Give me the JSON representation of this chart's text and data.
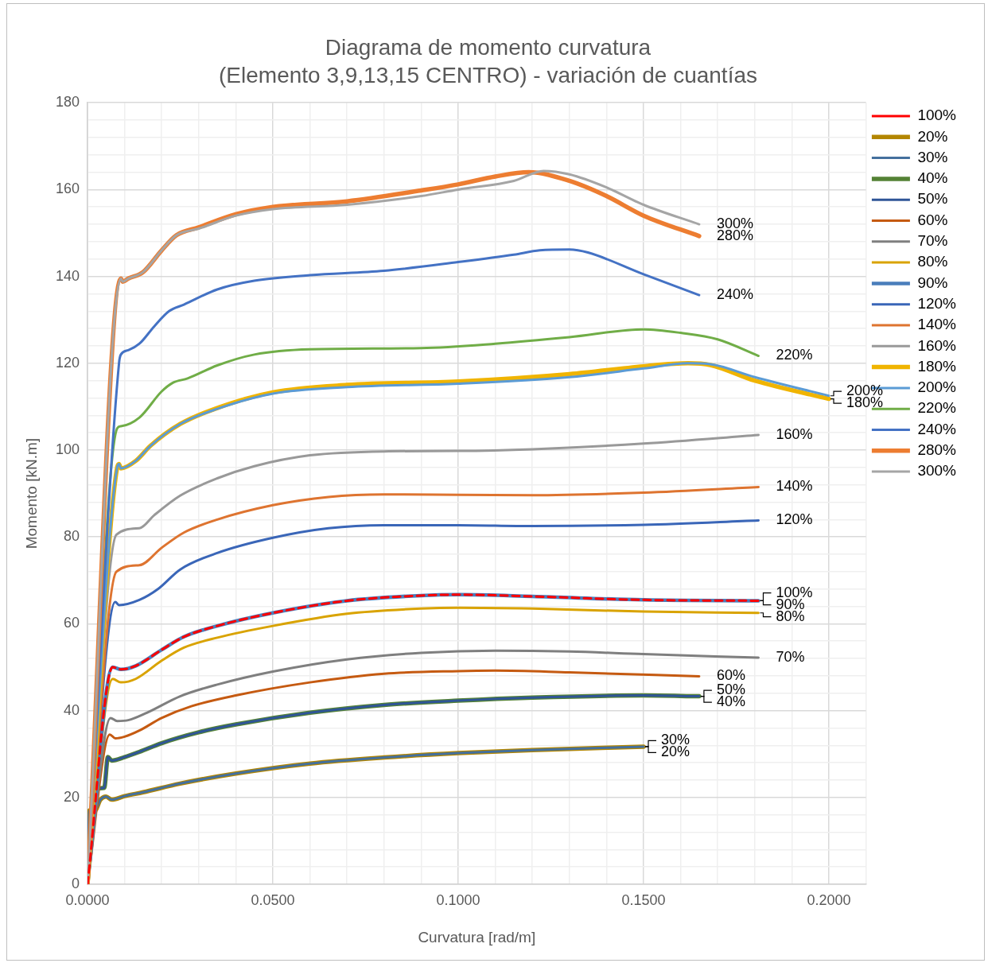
{
  "chart_data": {
    "type": "line",
    "title": "Diagrama de momento curvatura",
    "subtitle": "(Elemento 3,9,13,15 CENTRO) - variación de cuantías",
    "xlabel": "Curvatura [rad/m]",
    "ylabel": "Momento [kN.m]",
    "xlim": [
      0,
      0.21
    ],
    "xticks": [
      {
        "value": 0,
        "label": "0.0000"
      },
      {
        "value": 0.01,
        "label": null
      },
      {
        "value": 0.02,
        "label": null
      },
      {
        "value": 0.03,
        "label": null
      },
      {
        "value": 0.04,
        "label": null
      },
      {
        "value": 0.05,
        "label": "0.0500"
      },
      {
        "value": 0.06,
        "label": null
      },
      {
        "value": 0.07,
        "label": null
      },
      {
        "value": 0.08,
        "label": null
      },
      {
        "value": 0.09,
        "label": null
      },
      {
        "value": 0.1,
        "label": "0.1000"
      },
      {
        "value": 0.11,
        "label": null
      },
      {
        "value": 0.12,
        "label": null
      },
      {
        "value": 0.13,
        "label": null
      },
      {
        "value": 0.14,
        "label": null
      },
      {
        "value": 0.15,
        "label": "0.1500"
      },
      {
        "value": 0.16,
        "label": null
      },
      {
        "value": 0.17,
        "label": null
      },
      {
        "value": 0.18,
        "label": null
      },
      {
        "value": 0.19,
        "label": null
      },
      {
        "value": 0.2,
        "label": "0.2000"
      },
      {
        "value": 0.21,
        "label": null
      }
    ],
    "ylim": [
      0,
      180
    ],
    "yticks": [
      0,
      {
        "value": 4,
        "label": null
      },
      {
        "value": 8,
        "label": null
      },
      {
        "value": 12,
        "label": null
      },
      {
        "value": 16,
        "label": null
      },
      20,
      {
        "value": 24,
        "label": null
      },
      {
        "value": 28,
        "label": null
      },
      {
        "value": 32,
        "label": null
      },
      {
        "value": 36,
        "label": null
      },
      40,
      {
        "value": 44,
        "label": null
      },
      {
        "value": 48,
        "label": null
      },
      {
        "value": 52,
        "label": null
      },
      {
        "value": 56,
        "label": null
      },
      60,
      {
        "value": 64,
        "label": null
      },
      {
        "value": 68,
        "label": null
      },
      {
        "value": 72,
        "label": null
      },
      {
        "value": 76,
        "label": null
      },
      80,
      {
        "value": 84,
        "label": null
      },
      {
        "value": 88,
        "label": null
      },
      {
        "value": 92,
        "label": null
      },
      {
        "value": 96,
        "label": null
      },
      100,
      {
        "value": 104,
        "label": null
      },
      {
        "value": 108,
        "label": null
      },
      {
        "value": 112,
        "label": null
      },
      {
        "value": 116,
        "label": null
      },
      120,
      {
        "value": 124,
        "label": null
      },
      {
        "value": 128,
        "label": null
      },
      {
        "value": 132,
        "label": null
      },
      {
        "value": 136,
        "label": null
      },
      140,
      {
        "value": 144,
        "label": null
      },
      {
        "value": 148,
        "label": null
      },
      {
        "value": 152,
        "label": null
      },
      {
        "value": 156,
        "label": null
      },
      160,
      {
        "value": 164,
        "label": null
      },
      {
        "value": 168,
        "label": null
      },
      {
        "value": 172,
        "label": null
      },
      {
        "value": 176,
        "label": null
      },
      180
    ],
    "grid": true,
    "legend": "right",
    "marker": "none",
    "line_style": "solid",
    "series": [
      {
        "name": "100%",
        "color": "#ff0000",
        "line_style": "dashed",
        "x": [
          0,
          0.0068,
          0.009,
          0.013,
          0.02,
          0.026,
          0.035,
          0.05,
          0.07,
          0.09,
          0.1,
          0.12,
          0.15,
          0.181
        ],
        "values": [
          0,
          50,
          49.5,
          50.3,
          54,
          57,
          59.5,
          62.5,
          65.3,
          66.5,
          66.7,
          66.3,
          65.5,
          65.3
        ]
      },
      {
        "name": "20%",
        "color": "#b38600",
        "x": [
          0,
          0.0005,
          0.002,
          0.0035,
          0.005,
          0.0065,
          0.01,
          0.015,
          0.025,
          0.04,
          0.06,
          0.08,
          0.1,
          0.12,
          0.15
        ],
        "values": [
          0,
          17,
          17,
          19.5,
          20.2,
          19.5,
          20.3,
          21.2,
          23.2,
          25.5,
          27.8,
          29.2,
          30.2,
          30.9,
          31.7
        ]
      },
      {
        "name": "30%",
        "color": "#44709d",
        "x": [
          0,
          0.0005,
          0.002,
          0.0035,
          0.005,
          0.0065,
          0.01,
          0.015,
          0.025,
          0.04,
          0.06,
          0.08,
          0.1,
          0.12,
          0.15
        ],
        "values": [
          0,
          17,
          17,
          19.5,
          20.2,
          19.5,
          20.3,
          21.2,
          23.2,
          25.5,
          27.8,
          29.2,
          30.2,
          30.9,
          31.7
        ]
      },
      {
        "name": "40%",
        "color": "#548235",
        "x": [
          0,
          0.0018,
          0.0045,
          0.0055,
          0.0065,
          0.01,
          0.014,
          0.02,
          0.03,
          0.04,
          0.06,
          0.08,
          0.1,
          0.12,
          0.15,
          0.165
        ],
        "values": [
          0,
          22,
          22.2,
          29.3,
          28.5,
          29.3,
          30.5,
          32.5,
          35,
          36.8,
          39.5,
          41.3,
          42.3,
          43,
          43.5,
          43.3
        ]
      },
      {
        "name": "50%",
        "color": "#2f5597",
        "x": [
          0,
          0.0018,
          0.0045,
          0.0055,
          0.0065,
          0.01,
          0.014,
          0.02,
          0.03,
          0.04,
          0.06,
          0.08,
          0.1,
          0.12,
          0.15,
          0.165
        ],
        "values": [
          0,
          22,
          22.2,
          29.3,
          28.5,
          29.3,
          30.5,
          32.5,
          35,
          36.8,
          39.5,
          41.3,
          42.3,
          43,
          43.5,
          43.3
        ]
      },
      {
        "name": "60%",
        "color": "#c55a11",
        "x": [
          0,
          0.006,
          0.0075,
          0.01,
          0.014,
          0.02,
          0.028,
          0.04,
          0.06,
          0.08,
          0.1,
          0.11,
          0.13,
          0.165
        ],
        "values": [
          0,
          34.5,
          33.6,
          34,
          35.4,
          38.3,
          41,
          43.5,
          46.5,
          48.5,
          49.1,
          49.2,
          48.8,
          47.9
        ]
      },
      {
        "name": "70%",
        "color": "#7f7f7f",
        "x": [
          0,
          0.0062,
          0.008,
          0.011,
          0.016,
          0.025,
          0.035,
          0.05,
          0.07,
          0.09,
          0.11,
          0.13,
          0.15,
          0.181
        ],
        "values": [
          0,
          38.3,
          37.6,
          37.8,
          39.5,
          43.3,
          46,
          49,
          51.8,
          53.3,
          53.8,
          53.6,
          53,
          52.2
        ]
      },
      {
        "name": "80%",
        "color": "#d9a300",
        "x": [
          0,
          0.0068,
          0.009,
          0.013,
          0.02,
          0.026,
          0.035,
          0.05,
          0.07,
          0.09,
          0.1,
          0.12,
          0.15,
          0.181
        ],
        "values": [
          0,
          47.3,
          46.5,
          47.3,
          51.5,
          54.5,
          56.8,
          59.5,
          62.3,
          63.5,
          63.7,
          63.5,
          62.8,
          62.5
        ]
      },
      {
        "name": "90%",
        "color": "#4a7ebb",
        "x": [
          0,
          0.0068,
          0.009,
          0.013,
          0.02,
          0.026,
          0.035,
          0.05,
          0.07,
          0.09,
          0.1,
          0.12,
          0.15,
          0.181
        ],
        "values": [
          0,
          50,
          49.5,
          50.3,
          54,
          57,
          59.5,
          62.5,
          65.3,
          66.5,
          66.7,
          66.3,
          65.5,
          65.3
        ]
      },
      {
        "name": "120%",
        "color": "#3a66b8",
        "x": [
          0,
          0.0075,
          0.0085,
          0.014,
          0.019,
          0.025,
          0.035,
          0.05,
          0.065,
          0.08,
          0.1,
          0.12,
          0.15,
          0.181
        ],
        "values": [
          0,
          65,
          64.3,
          65.5,
          68,
          72.5,
          76.3,
          79.8,
          82,
          82.7,
          82.7,
          82.5,
          82.8,
          83.8
        ]
      },
      {
        "name": "140%",
        "color": "#de7430",
        "x": [
          0,
          0.0078,
          0.014,
          0.02,
          0.026,
          0.035,
          0.05,
          0.065,
          0.08,
          0.1,
          0.12,
          0.15,
          0.181
        ],
        "values": [
          0,
          72,
          73.5,
          77.5,
          81,
          84,
          87.3,
          89.2,
          89.8,
          89.7,
          89.6,
          90.2,
          91.5
        ]
      },
      {
        "name": "160%",
        "color": "#999999",
        "x": [
          0,
          0.0078,
          0.014,
          0.018,
          0.025,
          0.035,
          0.045,
          0.06,
          0.08,
          0.1,
          0.12,
          0.15,
          0.181
        ],
        "values": [
          0,
          80.5,
          82,
          85,
          89.5,
          93.5,
          96.3,
          98.8,
          99.7,
          99.8,
          100.2,
          101.5,
          103.5
        ]
      },
      {
        "name": "180%",
        "color": "#f0b400",
        "x": [
          0,
          0.008,
          0.0085,
          0.009,
          0.013,
          0.017,
          0.025,
          0.035,
          0.05,
          0.07,
          0.1,
          0.13,
          0.15,
          0.162,
          0.168,
          0.18,
          0.2
        ],
        "values": [
          0,
          96,
          96.8,
          95.8,
          97.5,
          101,
          106,
          109.7,
          113.3,
          115,
          115.8,
          117.5,
          119.3,
          120,
          119.6,
          116,
          111.8
        ]
      },
      {
        "name": "200%",
        "color": "#5b9bd5",
        "x": [
          0,
          0.008,
          0.0085,
          0.009,
          0.013,
          0.017,
          0.025,
          0.035,
          0.05,
          0.07,
          0.1,
          0.13,
          0.15,
          0.162,
          0.168,
          0.18,
          0.2
        ],
        "values": [
          0,
          96,
          96.8,
          95.8,
          97.5,
          101,
          106,
          109.5,
          113,
          114.5,
          115.3,
          116.8,
          118.8,
          120,
          119.8,
          116.8,
          112.5
        ]
      },
      {
        "name": "220%",
        "color": "#70ad47",
        "x": [
          0,
          0.008,
          0.009,
          0.014,
          0.02,
          0.023,
          0.027,
          0.035,
          0.045,
          0.06,
          0.09,
          0.11,
          0.13,
          0.15,
          0.16,
          0.17,
          0.181
        ],
        "values": [
          0,
          105,
          105.5,
          107.5,
          113.5,
          115.5,
          116.5,
          119.5,
          122,
          123.2,
          123.5,
          124.5,
          126,
          127.8,
          127,
          125.5,
          121.7
        ]
      },
      {
        "name": "240%",
        "color": "#4472c4",
        "x": [
          0,
          0.0085,
          0.009,
          0.011,
          0.014,
          0.018,
          0.022,
          0.026,
          0.035,
          0.045,
          0.06,
          0.08,
          0.1,
          0.115,
          0.122,
          0.13,
          0.135,
          0.15,
          0.165
        ],
        "values": [
          0,
          120,
          122,
          123,
          124.5,
          128.5,
          132,
          133.5,
          137,
          139,
          140.3,
          141.3,
          143.3,
          145,
          146,
          146.2,
          145.5,
          140.5,
          135.7
        ]
      },
      {
        "name": "280%",
        "color": "#ed7d31",
        "x": [
          0,
          0.009,
          0.0095,
          0.011,
          0.015,
          0.02,
          0.024,
          0.03,
          0.04,
          0.05,
          0.07,
          0.09,
          0.1,
          0.11,
          0.119,
          0.13,
          0.14,
          0.15,
          0.165
        ],
        "values": [
          0,
          139.5,
          138.8,
          139.5,
          141,
          146,
          149.5,
          151.3,
          154.3,
          156,
          157.3,
          159.8,
          161.2,
          163,
          164,
          162,
          158.5,
          154,
          149.3
        ]
      },
      {
        "name": "300%",
        "color": "#a5a5a5",
        "x": [
          0,
          0.009,
          0.0095,
          0.011,
          0.015,
          0.02,
          0.024,
          0.03,
          0.04,
          0.05,
          0.07,
          0.09,
          0.1,
          0.115,
          0.123,
          0.13,
          0.14,
          0.15,
          0.165
        ],
        "values": [
          0,
          139.5,
          138.8,
          139.5,
          141,
          146,
          149.5,
          151,
          154,
          155.5,
          156.5,
          158.5,
          160,
          162,
          164.3,
          163.5,
          160.5,
          156.5,
          152
        ]
      }
    ],
    "annotations": [
      {
        "text": "300%",
        "x": 0.165,
        "y": 152
      },
      {
        "text": "280%",
        "x": 0.165,
        "y": 149.3
      },
      {
        "text": "240%",
        "x": 0.165,
        "y": 135.7
      },
      {
        "text": "220%",
        "x": 0.181,
        "y": 121.7
      },
      {
        "text": "200%",
        "x": 0.2,
        "y": 112.5
      },
      {
        "text": "180%",
        "x": 0.2,
        "y": 111.8
      },
      {
        "text": "160%",
        "x": 0.181,
        "y": 103.5
      },
      {
        "text": "140%",
        "x": 0.181,
        "y": 91.5
      },
      {
        "text": "120%",
        "x": 0.181,
        "y": 83.8
      },
      {
        "text": "100%",
        "x": 0.181,
        "y": 65.3
      },
      {
        "text": "90%",
        "x": 0.181,
        "y": 65.3
      },
      {
        "text": "80%",
        "x": 0.181,
        "y": 62.5
      },
      {
        "text": "70%",
        "x": 0.181,
        "y": 52.2
      },
      {
        "text": "60%",
        "x": 0.165,
        "y": 47.9
      },
      {
        "text": "50%",
        "x": 0.165,
        "y": 43.3
      },
      {
        "text": "40%",
        "x": 0.165,
        "y": 43.3
      },
      {
        "text": "30%",
        "x": 0.15,
        "y": 31.7
      },
      {
        "text": "20%",
        "x": 0.15,
        "y": 31.7
      }
    ]
  }
}
